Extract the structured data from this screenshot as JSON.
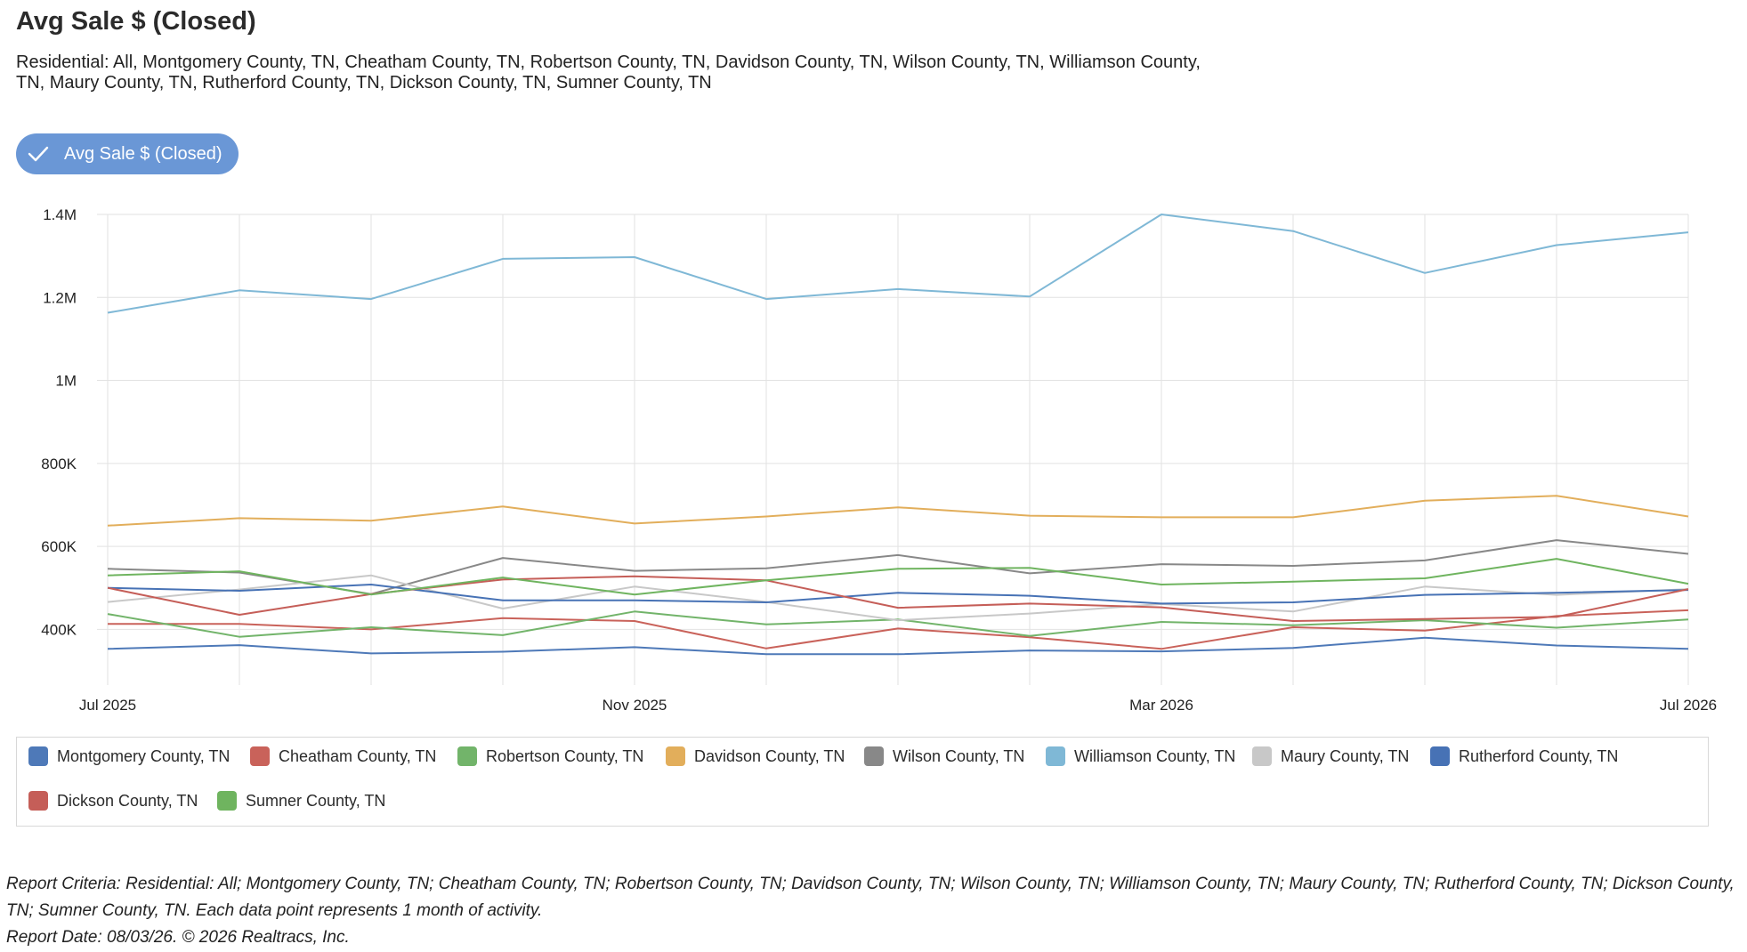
{
  "header": {
    "title": "Avg Sale $ (Closed)",
    "subtitle": "Residential: All, Montgomery County, TN, Cheatham County, TN, Robertson County, TN, Davidson County, TN, Wilson County, TN, Williamson County, TN, Maury County, TN, Rutherford County, TN, Dickson County, TN, Sumner County, TN"
  },
  "toggle": {
    "label": "Avg Sale $ (Closed)",
    "color": "#6a97d6"
  },
  "chart_data": {
    "type": "line",
    "title": "Avg Sale $ (Closed)",
    "x": [
      "2025-07",
      "2025-08",
      "2025-09",
      "2025-10",
      "2025-11",
      "2025-12",
      "2026-01",
      "2026-02",
      "2026-03",
      "2026-04",
      "2026-05",
      "2026-06",
      "2026-07"
    ],
    "x_tick_labels": [
      {
        "x": "2025-07",
        "label": "Jul 2025"
      },
      {
        "x": "2025-11",
        "label": "Nov 2025"
      },
      {
        "x": "2026-03",
        "label": "Mar 2026"
      },
      {
        "x": "2026-07",
        "label": "Jul 2026"
      }
    ],
    "y_ticks": [
      {
        "value": 400000,
        "label": "400K"
      },
      {
        "value": 600000,
        "label": "600K"
      },
      {
        "value": 800000,
        "label": "800K"
      },
      {
        "value": 1000000,
        "label": "1M"
      },
      {
        "value": 1200000,
        "label": "1.2M"
      },
      {
        "value": 1400000,
        "label": "1.4M"
      }
    ],
    "ylim": [
      330000,
      1400000
    ],
    "grid": true,
    "legend_position": "bottom",
    "series": [
      {
        "name": "Montgomery County, TN",
        "color": "#4e79b8",
        "values": [
          353000,
          362000,
          342000,
          346000,
          357000,
          340000,
          340000,
          349000,
          347000,
          355000,
          380000,
          361000,
          353000
        ]
      },
      {
        "name": "Cheatham County, TN",
        "color": "#c9625a",
        "values": [
          413000,
          413000,
          400000,
          427000,
          420000,
          354000,
          402000,
          381000,
          353000,
          405000,
          397000,
          432000,
          446000
        ]
      },
      {
        "name": "Robertson County, TN",
        "color": "#72b46a",
        "values": [
          437000,
          382000,
          405000,
          386000,
          443000,
          412000,
          424000,
          384000,
          418000,
          410000,
          422000,
          404000,
          424000
        ]
      },
      {
        "name": "Davidson County, TN",
        "color": "#e2ae5b",
        "values": [
          650000,
          668000,
          662000,
          696000,
          655000,
          672000,
          694000,
          674000,
          670000,
          670000,
          710000,
          722000,
          672000
        ]
      },
      {
        "name": "Wilson County, TN",
        "color": "#888888",
        "values": [
          546000,
          537000,
          485000,
          572000,
          541000,
          547000,
          579000,
          535000,
          557000,
          553000,
          566000,
          615000,
          582000
        ]
      },
      {
        "name": "Williamson County, TN",
        "color": "#7fb8d6",
        "values": [
          1163000,
          1217000,
          1196000,
          1293000,
          1297000,
          1196000,
          1220000,
          1202000,
          1400000,
          1360000,
          1259000,
          1326000,
          1357000
        ]
      },
      {
        "name": "Maury County, TN",
        "color": "#c8c8c8",
        "values": [
          466000,
          496000,
          530000,
          450000,
          503000,
          466000,
          422000,
          438000,
          461000,
          443000,
          503000,
          483000,
          497000
        ]
      },
      {
        "name": "Rutherford County, TN",
        "color": "#4772b5",
        "values": [
          500000,
          493000,
          508000,
          470000,
          470000,
          465000,
          488000,
          481000,
          462000,
          465000,
          483000,
          488000,
          495000
        ]
      },
      {
        "name": "Dickson County, TN",
        "color": "#c55e58",
        "values": [
          500000,
          435000,
          485000,
          520000,
          528000,
          518000,
          452000,
          462000,
          453000,
          420000,
          425000,
          430000,
          497000
        ]
      },
      {
        "name": "Sumner County, TN",
        "color": "#6fb45f",
        "values": [
          530000,
          540000,
          484000,
          525000,
          484000,
          518000,
          546000,
          548000,
          508000,
          515000,
          523000,
          570000,
          510000
        ]
      }
    ]
  },
  "footer": {
    "criteria": "Report Criteria: Residential: All; Montgomery County, TN; Cheatham County, TN; Robertson County, TN; Davidson County, TN; Wilson County, TN; Williamson County, TN; Maury County, TN; Rutherford County, TN; Dickson County, TN; Sumner County, TN. Each data point represents 1 month of activity.",
    "report_date": "Report Date: 08/03/26. © 2026 Realtracs, Inc."
  }
}
